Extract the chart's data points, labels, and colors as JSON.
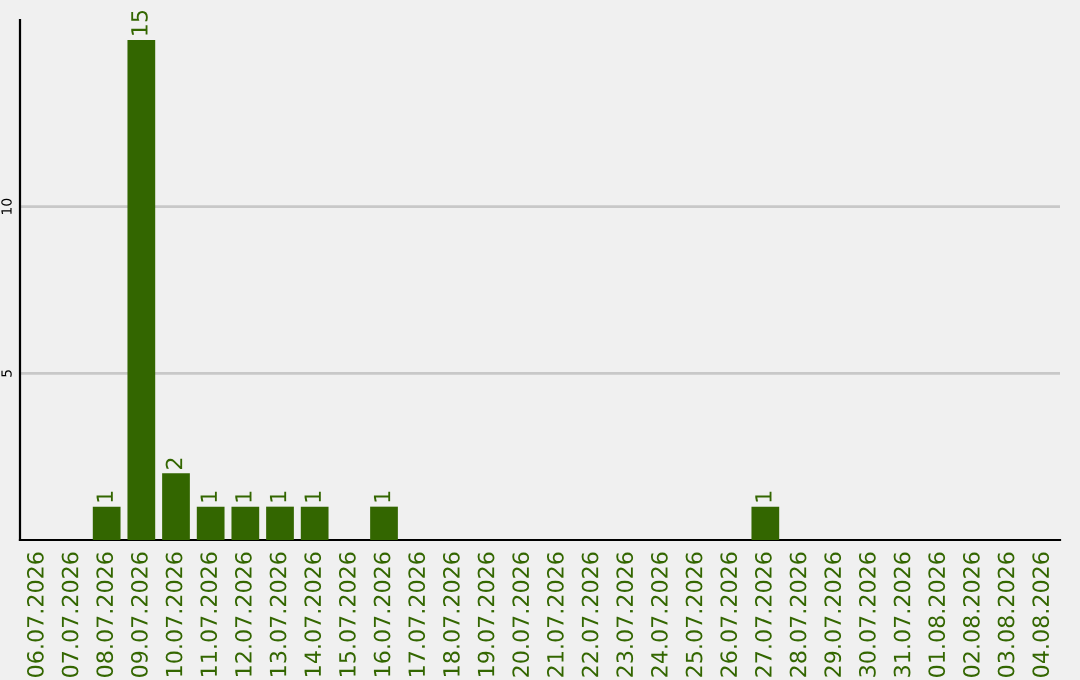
{
  "chart_data": {
    "type": "bar",
    "categories": [
      "06.07.2026",
      "07.07.2026",
      "08.07.2026",
      "09.07.2026",
      "10.07.2026",
      "11.07.2026",
      "12.07.2026",
      "13.07.2026",
      "14.07.2026",
      "15.07.2026",
      "16.07.2026",
      "17.07.2026",
      "18.07.2026",
      "19.07.2026",
      "20.07.2026",
      "21.07.2026",
      "22.07.2026",
      "23.07.2026",
      "24.07.2026",
      "25.07.2026",
      "26.07.2026",
      "27.07.2026",
      "28.07.2026",
      "29.07.2026",
      "30.07.2026",
      "31.07.2026",
      "01.08.2026",
      "02.08.2026",
      "03.08.2026",
      "04.08.2026"
    ],
    "values": [
      0,
      0,
      1,
      15,
      2,
      1,
      1,
      1,
      1,
      0,
      1,
      0,
      0,
      0,
      0,
      0,
      0,
      0,
      0,
      0,
      0,
      1,
      0,
      0,
      0,
      0,
      0,
      0,
      0,
      0
    ],
    "value_labels": [
      null,
      null,
      "1",
      "15",
      "2",
      "1",
      "1",
      "1",
      "1",
      null,
      "1",
      null,
      null,
      null,
      null,
      null,
      null,
      null,
      null,
      null,
      null,
      "1",
      null,
      null,
      null,
      null,
      null,
      null,
      null,
      null
    ],
    "color": "#336600",
    "ylim": [
      0,
      15.6
    ],
    "yticks": [
      5,
      10
    ],
    "grid": "y",
    "legend": false
  }
}
